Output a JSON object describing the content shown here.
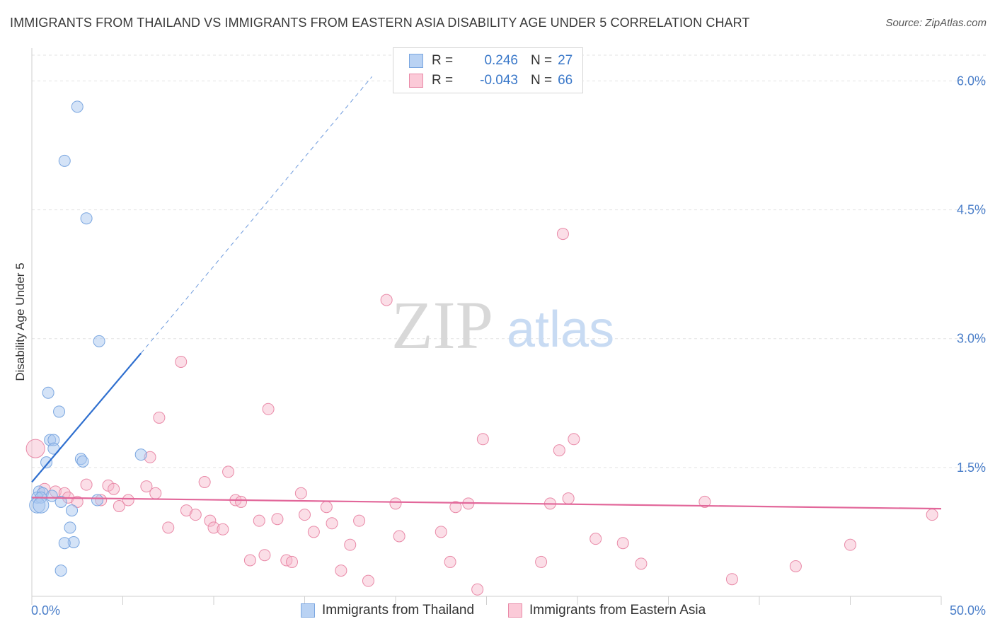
{
  "title": "IMMIGRANTS FROM THAILAND VS IMMIGRANTS FROM EASTERN ASIA DISABILITY AGE UNDER 5 CORRELATION CHART",
  "source": "Source: ZipAtlas.com",
  "watermark": {
    "zip": "ZIP",
    "atlas": "atlas"
  },
  "legend": {
    "rows": [
      {
        "r_label": "R =",
        "r_value": "0.246",
        "n_label": "N =",
        "n_value": "27"
      },
      {
        "r_label": "R =",
        "r_value": "-0.043",
        "n_label": "N =",
        "n_value": "66"
      }
    ]
  },
  "colors": {
    "thailand_fill": "#a9c8f0",
    "thailand_stroke": "#7aa6e0",
    "thailand_line": "#2f6fcf",
    "eastasia_fill": "#f6b6c9",
    "eastasia_stroke": "#e98aa8",
    "eastasia_line": "#e2679a",
    "tick_color": "#4a7ec9"
  },
  "chart_data": {
    "type": "scatter",
    "title": "IMMIGRANTS FROM THAILAND VS IMMIGRANTS FROM EASTERN ASIA DISABILITY AGE UNDER 5 CORRELATION CHART",
    "xlabel": "",
    "ylabel": "Disability Age Under 5",
    "xlim": [
      0,
      50
    ],
    "ylim": [
      0,
      6.3
    ],
    "x_tick_labels": [
      "0.0%",
      "50.0%"
    ],
    "y_ticks": [
      1.5,
      3.0,
      4.5,
      6.0
    ],
    "y_tick_labels": [
      "1.5%",
      "3.0%",
      "4.5%",
      "6.0%"
    ],
    "series": [
      {
        "name": "Immigrants from Thailand",
        "points": [
          [
            2.5,
            5.7
          ],
          [
            1.8,
            5.07
          ],
          [
            3.0,
            4.4
          ],
          [
            3.7,
            2.97
          ],
          [
            0.9,
            2.37
          ],
          [
            1.5,
            2.15
          ],
          [
            1.0,
            1.82
          ],
          [
            1.2,
            1.82
          ],
          [
            1.2,
            1.72
          ],
          [
            0.8,
            1.56
          ],
          [
            2.7,
            1.6
          ],
          [
            2.8,
            1.57
          ],
          [
            6.0,
            1.65
          ],
          [
            0.4,
            1.22
          ],
          [
            0.6,
            1.2
          ],
          [
            1.1,
            1.17
          ],
          [
            0.3,
            1.15
          ],
          [
            0.5,
            1.15
          ],
          [
            0.3,
            1.06
          ],
          [
            0.5,
            1.06
          ],
          [
            1.6,
            1.1
          ],
          [
            3.6,
            1.12
          ],
          [
            2.2,
            1.0
          ],
          [
            2.1,
            0.8
          ],
          [
            2.3,
            0.63
          ],
          [
            1.8,
            0.62
          ],
          [
            1.6,
            0.3
          ]
        ],
        "trend": {
          "x": [
            0,
            6.0
          ],
          "y": [
            1.33,
            2.83
          ],
          "dashed_to": [
            18.7,
            6.05
          ]
        }
      },
      {
        "name": "Immigrants from Eastern Asia",
        "points": [
          [
            0.2,
            1.72
          ],
          [
            0.7,
            1.25
          ],
          [
            1.3,
            1.22
          ],
          [
            1.8,
            1.2
          ],
          [
            2.0,
            1.15
          ],
          [
            2.5,
            1.1
          ],
          [
            3.0,
            1.3
          ],
          [
            3.8,
            1.12
          ],
          [
            4.2,
            1.29
          ],
          [
            4.5,
            1.25
          ],
          [
            4.8,
            1.05
          ],
          [
            5.3,
            1.12
          ],
          [
            6.3,
            1.28
          ],
          [
            6.5,
            1.62
          ],
          [
            6.8,
            1.2
          ],
          [
            7.0,
            2.08
          ],
          [
            7.5,
            0.8
          ],
          [
            8.2,
            2.73
          ],
          [
            8.5,
            1.0
          ],
          [
            9.0,
            0.95
          ],
          [
            9.5,
            1.33
          ],
          [
            9.8,
            0.88
          ],
          [
            10.0,
            0.8
          ],
          [
            10.5,
            0.78
          ],
          [
            10.8,
            1.45
          ],
          [
            11.2,
            1.12
          ],
          [
            11.5,
            1.1
          ],
          [
            12.0,
            0.42
          ],
          [
            12.5,
            0.88
          ],
          [
            12.8,
            0.48
          ],
          [
            13.0,
            2.18
          ],
          [
            13.5,
            0.9
          ],
          [
            14.0,
            0.42
          ],
          [
            14.3,
            0.4
          ],
          [
            14.8,
            1.2
          ],
          [
            15.0,
            0.95
          ],
          [
            15.5,
            0.75
          ],
          [
            16.2,
            1.04
          ],
          [
            16.5,
            0.85
          ],
          [
            17.0,
            0.3
          ],
          [
            17.5,
            0.6
          ],
          [
            18.0,
            0.88
          ],
          [
            18.5,
            0.18
          ],
          [
            19.5,
            3.45
          ],
          [
            20.0,
            1.08
          ],
          [
            20.2,
            0.7
          ],
          [
            22.5,
            0.75
          ],
          [
            23.0,
            0.4
          ],
          [
            23.3,
            1.04
          ],
          [
            24.0,
            1.08
          ],
          [
            24.5,
            0.08
          ],
          [
            24.8,
            1.83
          ],
          [
            28.0,
            0.4
          ],
          [
            28.5,
            1.08
          ],
          [
            29.0,
            1.7
          ],
          [
            29.5,
            1.14
          ],
          [
            29.2,
            4.22
          ],
          [
            29.8,
            1.83
          ],
          [
            31.0,
            0.67
          ],
          [
            32.5,
            0.62
          ],
          [
            33.5,
            0.38
          ],
          [
            37.0,
            1.1
          ],
          [
            38.5,
            0.2
          ],
          [
            42.0,
            0.35
          ],
          [
            45.0,
            0.6
          ],
          [
            49.5,
            0.95
          ]
        ],
        "trend": {
          "x": [
            0,
            50
          ],
          "y": [
            1.15,
            1.02
          ]
        }
      }
    ]
  }
}
